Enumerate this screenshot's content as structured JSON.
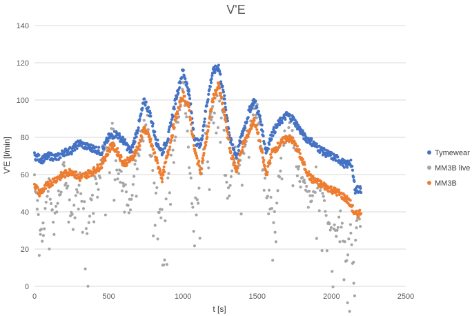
{
  "chart_data": {
    "type": "scatter",
    "title": "V'E",
    "xlabel": "t [s]",
    "ylabel": "V'E [l/min]",
    "xlim": [
      0,
      2500
    ],
    "ylim": [
      0,
      140
    ],
    "xticks": [
      0,
      500,
      1000,
      1500,
      2000,
      2500
    ],
    "yticks": [
      0,
      20,
      40,
      60,
      80,
      100,
      120,
      140
    ],
    "grid": "horizontal",
    "legend_position": "right",
    "series": [
      {
        "name": "Tymewear",
        "color": "#4472C4",
        "points": [
          [
            0,
            70
          ],
          [
            50,
            68
          ],
          [
            100,
            70
          ],
          [
            150,
            69
          ],
          [
            200,
            72
          ],
          [
            250,
            73
          ],
          [
            300,
            77
          ],
          [
            350,
            75
          ],
          [
            400,
            74
          ],
          [
            450,
            72
          ],
          [
            500,
            80
          ],
          [
            550,
            82
          ],
          [
            600,
            78
          ],
          [
            650,
            72
          ],
          [
            700,
            86
          ],
          [
            740,
            100
          ],
          [
            780,
            92
          ],
          [
            820,
            78
          ],
          [
            860,
            72
          ],
          [
            900,
            80
          ],
          [
            950,
            100
          ],
          [
            1000,
            116
          ],
          [
            1040,
            104
          ],
          [
            1080,
            78
          ],
          [
            1120,
            76
          ],
          [
            1160,
            98
          ],
          [
            1200,
            115
          ],
          [
            1240,
            118
          ],
          [
            1280,
            100
          ],
          [
            1320,
            78
          ],
          [
            1360,
            70
          ],
          [
            1400,
            82
          ],
          [
            1450,
            95
          ],
          [
            1480,
            100
          ],
          [
            1520,
            90
          ],
          [
            1560,
            72
          ],
          [
            1600,
            82
          ],
          [
            1650,
            88
          ],
          [
            1700,
            92
          ],
          [
            1740,
            90
          ],
          [
            1780,
            85
          ],
          [
            1820,
            80
          ],
          [
            1860,
            78
          ],
          [
            1900,
            75
          ],
          [
            1950,
            72
          ],
          [
            2000,
            70
          ],
          [
            2050,
            68
          ],
          [
            2100,
            65
          ],
          [
            2130,
            67
          ],
          [
            2160,
            52
          ],
          [
            2200,
            52
          ]
        ]
      },
      {
        "name": "MM3B live",
        "color": "#A5A5A5",
        "points": [
          [
            0,
            60
          ],
          [
            20,
            45
          ],
          [
            40,
            32
          ],
          [
            60,
            28
          ],
          [
            80,
            50
          ],
          [
            100,
            55
          ],
          [
            120,
            38
          ],
          [
            150,
            42
          ],
          [
            180,
            55
          ],
          [
            200,
            63
          ],
          [
            230,
            48
          ],
          [
            260,
            35
          ],
          [
            300,
            60
          ],
          [
            330,
            45
          ],
          [
            360,
            30
          ],
          [
            400,
            62
          ],
          [
            430,
            50
          ],
          [
            460,
            72
          ],
          [
            500,
            75
          ],
          [
            530,
            88
          ],
          [
            560,
            60
          ],
          [
            600,
            55
          ],
          [
            640,
            44
          ],
          [
            680,
            62
          ],
          [
            720,
            80
          ],
          [
            760,
            88
          ],
          [
            800,
            60
          ],
          [
            840,
            42
          ],
          [
            880,
            36
          ],
          [
            920,
            72
          ],
          [
            960,
            90
          ],
          [
            1000,
            110
          ],
          [
            1030,
            82
          ],
          [
            1060,
            48
          ],
          [
            1090,
            44
          ],
          [
            1120,
            60
          ],
          [
            1160,
            85
          ],
          [
            1200,
            95
          ],
          [
            1240,
            108
          ],
          [
            1270,
            88
          ],
          [
            1300,
            44
          ],
          [
            1340,
            72
          ],
          [
            1380,
            62
          ],
          [
            1420,
            80
          ],
          [
            1460,
            92
          ],
          [
            1500,
            96
          ],
          [
            1540,
            60
          ],
          [
            1580,
            48
          ],
          [
            1620,
            35
          ],
          [
            1660,
            70
          ],
          [
            1700,
            85
          ],
          [
            1740,
            80
          ],
          [
            1780,
            60
          ],
          [
            1820,
            52
          ],
          [
            1860,
            44
          ],
          [
            1900,
            60
          ],
          [
            1940,
            50
          ],
          [
            1980,
            35
          ],
          [
            2020,
            28
          ],
          [
            2060,
            40
          ],
          [
            2090,
            20
          ],
          [
            2110,
            17
          ],
          [
            2130,
            30
          ],
          [
            2150,
            6
          ],
          [
            2170,
            30
          ],
          [
            2200,
            40
          ]
        ]
      },
      {
        "name": "MM3B",
        "color": "#ED7D31",
        "points": [
          [
            0,
            55
          ],
          [
            30,
            50
          ],
          [
            60,
            52
          ],
          [
            100,
            55
          ],
          [
            150,
            58
          ],
          [
            200,
            60
          ],
          [
            250,
            62
          ],
          [
            300,
            58
          ],
          [
            350,
            60
          ],
          [
            400,
            62
          ],
          [
            450,
            65
          ],
          [
            480,
            70
          ],
          [
            520,
            76
          ],
          [
            560,
            72
          ],
          [
            600,
            66
          ],
          [
            650,
            68
          ],
          [
            700,
            75
          ],
          [
            740,
            85
          ],
          [
            780,
            78
          ],
          [
            820,
            68
          ],
          [
            860,
            58
          ],
          [
            900,
            72
          ],
          [
            950,
            90
          ],
          [
            1000,
            103
          ],
          [
            1040,
            96
          ],
          [
            1080,
            72
          ],
          [
            1120,
            62
          ],
          [
            1160,
            80
          ],
          [
            1200,
            100
          ],
          [
            1240,
            108
          ],
          [
            1280,
            92
          ],
          [
            1320,
            72
          ],
          [
            1360,
            62
          ],
          [
            1400,
            75
          ],
          [
            1450,
            84
          ],
          [
            1480,
            90
          ],
          [
            1520,
            76
          ],
          [
            1560,
            60
          ],
          [
            1600,
            72
          ],
          [
            1650,
            76
          ],
          [
            1700,
            80
          ],
          [
            1740,
            78
          ],
          [
            1780,
            72
          ],
          [
            1820,
            64
          ],
          [
            1860,
            58
          ],
          [
            1900,
            56
          ],
          [
            1950,
            54
          ],
          [
            2000,
            52
          ],
          [
            2050,
            50
          ],
          [
            2100,
            47
          ],
          [
            2130,
            44
          ],
          [
            2160,
            38
          ],
          [
            2200,
            40
          ]
        ]
      }
    ]
  }
}
